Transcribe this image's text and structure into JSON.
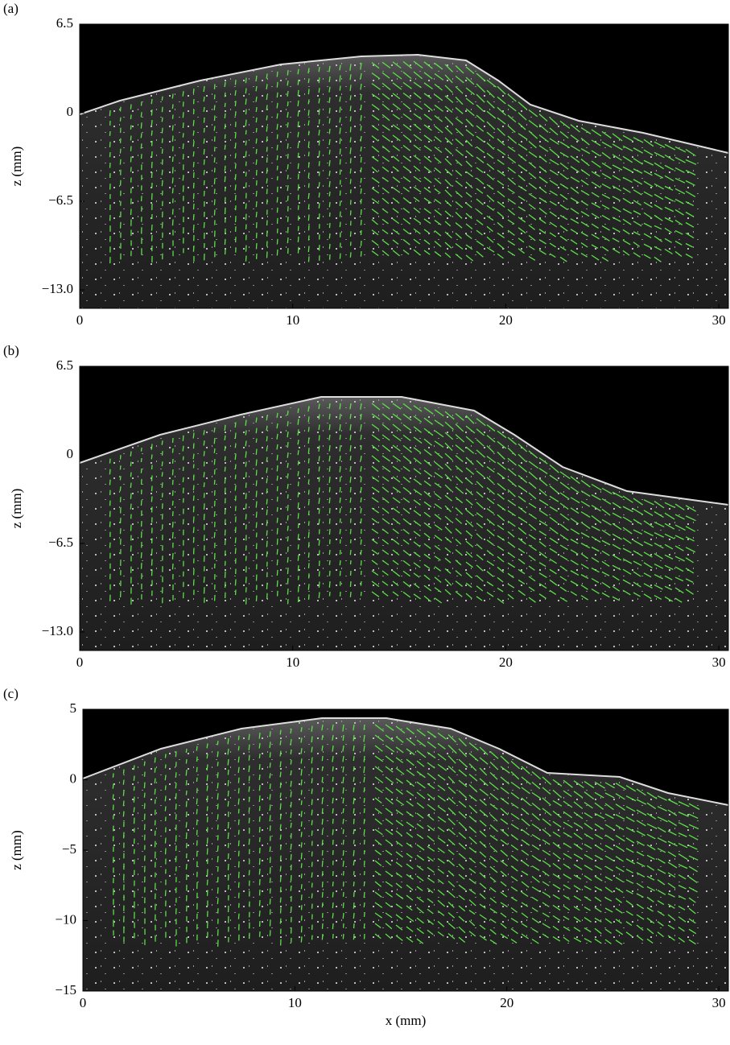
{
  "chart_data": [
    {
      "type": "image",
      "panel_label": "(a)",
      "ylabel": "z (mm)",
      "xlim": [
        0,
        30.45
      ],
      "ylim": [
        -14.36,
        6.5
      ],
      "xticks": [
        0,
        10,
        20,
        30
      ],
      "yticks": [
        6.5,
        0,
        {
          "value": -6.5,
          "label": "−6.5"
        },
        {
          "value": -13,
          "label": "−13.0"
        }
      ],
      "color": "#5dde4a"
    },
    {
      "type": "image",
      "panel_label": "(b)",
      "ylabel": "z (mm)",
      "xlim": [
        0,
        30.45
      ],
      "ylim": [
        -14.36,
        6.5
      ],
      "xticks": [
        0,
        10,
        20,
        30
      ],
      "yticks": [
        6.5,
        0,
        {
          "value": -6.5,
          "label": "−6.5"
        },
        {
          "value": -13,
          "label": "−13.0"
        }
      ],
      "color": "#5dde4a"
    },
    {
      "type": "image",
      "panel_label": "(c)",
      "ylabel": "z (mm)",
      "xlabel": "x (mm)",
      "xlim": [
        0,
        30.45
      ],
      "ylim": [
        -15,
        5
      ],
      "xticks": [
        0,
        10,
        20,
        30
      ],
      "yticks": [
        5,
        0,
        {
          "value": -5,
          "label": "−5"
        },
        {
          "value": -10,
          "label": "−10"
        },
        {
          "value": -15,
          "label": "−15"
        }
      ],
      "color": "#5dde4a"
    }
  ]
}
